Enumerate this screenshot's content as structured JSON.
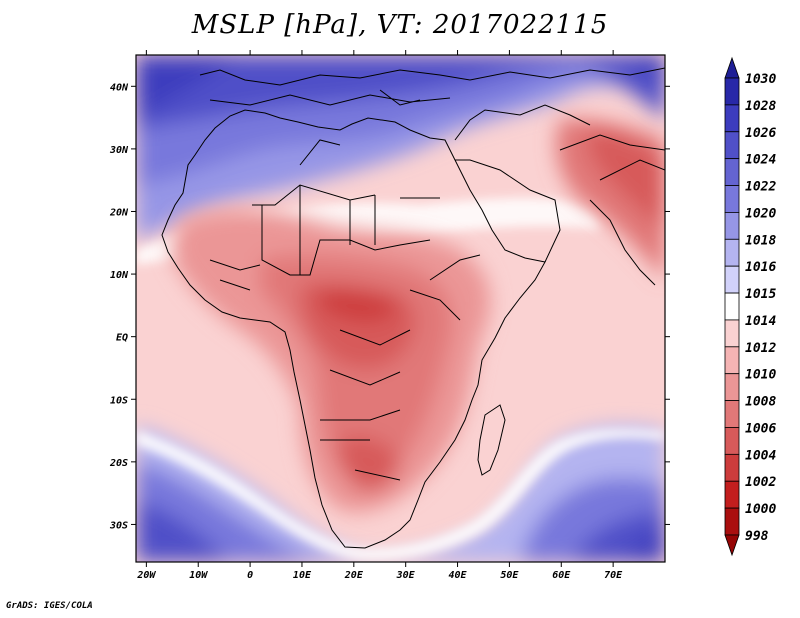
{
  "title": "MSLP [hPa], VT: 2017022115",
  "credit": "GrADS: IGES/COLA",
  "map": {
    "projection": "latlon",
    "lon_range": [
      -22,
      80
    ],
    "lat_range": [
      -36,
      45
    ],
    "lon_ticks": [
      "20W",
      "10W",
      "0",
      "10E",
      "20E",
      "30E",
      "40E",
      "50E",
      "60E",
      "70E"
    ],
    "lat_ticks": [
      "40N",
      "30N",
      "20N",
      "10N",
      "EQ",
      "10S",
      "20S",
      "30S"
    ]
  },
  "colorbar": {
    "levels": [
      "1030",
      "1028",
      "1026",
      "1024",
      "1022",
      "1020",
      "1018",
      "1016",
      "1015",
      "1014",
      "1012",
      "1010",
      "1008",
      "1006",
      "1004",
      "1002",
      "1000",
      "998"
    ],
    "colors": [
      "#1e1e96",
      "#2828a8",
      "#3c3cbe",
      "#5050c8",
      "#6464d2",
      "#7878dc",
      "#9696e6",
      "#b4b4f0",
      "#d2d2fa",
      "#ffffff",
      "#fad2d2",
      "#f5b4b4",
      "#eb9696",
      "#e17878",
      "#d75a5a",
      "#cd3c3c",
      "#c31e1e",
      "#aa0f0f",
      "#960505"
    ]
  },
  "colors": {
    "high_pressure": "#3c3cbe",
    "low_pressure": "#cd3c3c",
    "neutral": "#ffffff"
  }
}
